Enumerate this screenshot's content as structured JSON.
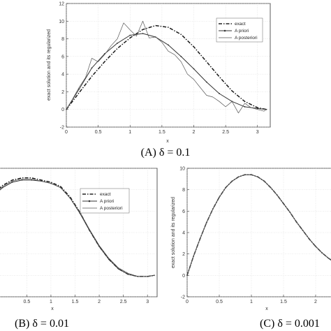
{
  "chart_data": [
    {
      "type": "line",
      "caption": "(A)  δ = 0.1",
      "xlabel": "x",
      "ylabel": "exact solution and its regularized",
      "xlim": [
        0,
        3.2
      ],
      "ylim": [
        -2,
        12
      ],
      "xticks": [
        "0",
        "0.5",
        "1",
        "1.5",
        "2",
        "2.5",
        "3"
      ],
      "yticks": [
        "-2",
        "0",
        "2",
        "4",
        "6",
        "8",
        "10",
        "12"
      ],
      "grid": true,
      "legend": "top-right",
      "series": [
        {
          "name": "exact",
          "style": "dash-dot",
          "x": [
            0,
            0.2,
            0.4,
            0.6,
            0.8,
            1.0,
            1.2,
            1.4,
            1.6,
            1.8,
            2.0,
            2.2,
            2.4,
            2.6,
            2.8,
            3.0,
            3.14
          ],
          "values": [
            0,
            1.9,
            3.75,
            5.4,
            6.9,
            8.1,
            9.05,
            9.5,
            9.3,
            8.5,
            7.1,
            5.4,
            3.7,
            2.1,
            0.9,
            0.2,
            0
          ]
        },
        {
          "name": "A priori",
          "style": "solid-marker",
          "x": [
            0,
            0.2,
            0.4,
            0.6,
            0.8,
            1.0,
            1.2,
            1.4,
            1.6,
            1.8,
            2.0,
            2.2,
            2.4,
            2.6,
            2.8,
            3.0,
            3.14
          ],
          "values": [
            0,
            2.3,
            4.7,
            6.3,
            7.5,
            8.4,
            8.6,
            8.2,
            7.3,
            6.0,
            4.6,
            3.1,
            1.8,
            0.9,
            0.3,
            0.1,
            0
          ]
        },
        {
          "name": "A posteriori",
          "style": "solid-thin",
          "x": [
            0,
            0.1,
            0.2,
            0.3,
            0.4,
            0.5,
            0.6,
            0.7,
            0.8,
            0.9,
            1.0,
            1.1,
            1.2,
            1.3,
            1.4,
            1.5,
            1.6,
            1.7,
            1.8,
            1.9,
            2.0,
            2.1,
            2.2,
            2.3,
            2.4,
            2.5,
            2.6,
            2.7,
            2.8,
            2.9,
            3.0,
            3.1,
            3.14
          ],
          "values": [
            0,
            1.2,
            2.5,
            3.6,
            5.8,
            5.4,
            6.2,
            7.2,
            8.0,
            9.8,
            9.0,
            8.3,
            10.0,
            8.1,
            8.2,
            7.6,
            6.6,
            6.2,
            5.4,
            4.0,
            3.4,
            2.5,
            1.6,
            1.4,
            0.9,
            0.3,
            0.9,
            -0.4,
            0.7,
            0.2,
            0.0,
            -0.2,
            0
          ]
        }
      ]
    },
    {
      "type": "line",
      "caption": "(B)  δ = 0.01",
      "xlabel": "x",
      "xlim": [
        -0.2,
        3.2
      ],
      "ylim": [
        -2,
        10
      ],
      "xticks": [
        "0.5",
        "1",
        "1.5",
        "2",
        "2.5",
        "3"
      ],
      "grid": true,
      "legend": "top-right",
      "series": [
        {
          "name": "exact",
          "style": "dash-dot",
          "x": [
            -0.2,
            0,
            0.2,
            0.4,
            0.6,
            0.8,
            1.0,
            1.2,
            1.4,
            1.6,
            1.8,
            2.0,
            2.2,
            2.4,
            2.6,
            2.8,
            3.0,
            3.14
          ],
          "values": [
            7.6,
            8.4,
            8.9,
            9.1,
            9.1,
            8.9,
            8.7,
            8.3,
            7.3,
            5.9,
            4.2,
            2.7,
            1.5,
            0.6,
            0.1,
            -0.1,
            -0.1,
            0
          ]
        },
        {
          "name": "A priori",
          "style": "solid-marker",
          "x": [
            -0.2,
            0,
            0.2,
            0.4,
            0.6,
            0.8,
            1.0,
            1.2,
            1.4,
            1.6,
            1.8,
            2.0,
            2.2,
            2.4,
            2.6,
            2.8,
            3.0,
            3.14
          ],
          "values": [
            7.4,
            8.2,
            8.7,
            8.9,
            8.9,
            8.8,
            8.6,
            8.2,
            7.2,
            5.8,
            4.2,
            2.7,
            1.5,
            0.6,
            0.1,
            -0.1,
            -0.1,
            0
          ]
        },
        {
          "name": "A posteriori",
          "style": "solid-thin",
          "x": [
            -0.2,
            0,
            0.2,
            0.4,
            0.6,
            0.8,
            1.0,
            1.2,
            1.4,
            1.6,
            1.8,
            2.0,
            2.2,
            2.4,
            2.6,
            2.8,
            3.0,
            3.14
          ],
          "values": [
            7.5,
            8.3,
            8.8,
            9.0,
            9.0,
            8.8,
            8.6,
            8.2,
            7.2,
            5.9,
            4.3,
            2.8,
            1.6,
            0.7,
            0.2,
            -0.1,
            -0.1,
            0
          ]
        }
      ]
    },
    {
      "type": "line",
      "caption": "(C)  δ = 0.001",
      "xlabel": "x",
      "ylabel": "exact solution and its regularized",
      "xlim": [
        0,
        2.5
      ],
      "ylim": [
        -2,
        10
      ],
      "xticks": [
        "0",
        "0.5",
        "1",
        "1.5",
        "2"
      ],
      "yticks": [
        "-2",
        "0",
        "2",
        "4",
        "6",
        "8",
        "10"
      ],
      "grid": true,
      "series": [
        {
          "name": "exact",
          "style": "dash-dot",
          "x": [
            0,
            0.1,
            0.2,
            0.3,
            0.4,
            0.5,
            0.6,
            0.7,
            0.8,
            0.9,
            1.0,
            1.1,
            1.2,
            1.3,
            1.4,
            1.5,
            1.6,
            1.7,
            1.8,
            1.9,
            2.0,
            2.1,
            2.2,
            2.3,
            2.4,
            2.5
          ],
          "values": [
            0,
            1.8,
            3.4,
            4.9,
            6.2,
            7.3,
            8.2,
            8.8,
            9.2,
            9.4,
            9.4,
            9.2,
            8.8,
            8.2,
            7.5,
            6.7,
            5.9,
            5.0,
            4.2,
            3.4,
            2.7,
            2.1,
            1.6,
            1.2,
            0.9,
            0.7
          ]
        },
        {
          "name": "A priori",
          "style": "solid-marker",
          "x": [
            0,
            0.1,
            0.2,
            0.3,
            0.4,
            0.5,
            0.6,
            0.7,
            0.8,
            0.9,
            1.0,
            1.1,
            1.2,
            1.3,
            1.4,
            1.5,
            1.6,
            1.7,
            1.8,
            1.9,
            2.0,
            2.1,
            2.2,
            2.3,
            2.4,
            2.5
          ],
          "values": [
            0,
            1.8,
            3.4,
            4.9,
            6.2,
            7.3,
            8.2,
            8.8,
            9.2,
            9.4,
            9.4,
            9.2,
            8.8,
            8.2,
            7.5,
            6.7,
            5.9,
            5.0,
            4.2,
            3.4,
            2.7,
            2.1,
            1.6,
            1.2,
            0.9,
            0.7
          ]
        },
        {
          "name": "A posteriori",
          "style": "solid-thin",
          "x": [
            0,
            0.1,
            0.2,
            0.3,
            0.4,
            0.5,
            0.6,
            0.7,
            0.8,
            0.9,
            1.0,
            1.1,
            1.2,
            1.3,
            1.4,
            1.5,
            1.6,
            1.7,
            1.8,
            1.9,
            2.0,
            2.1,
            2.2,
            2.3,
            2.4,
            2.5
          ],
          "values": [
            0,
            1.8,
            3.4,
            4.9,
            6.2,
            7.3,
            8.2,
            8.8,
            9.2,
            9.4,
            9.4,
            9.2,
            8.8,
            8.2,
            7.5,
            6.7,
            5.9,
            5.0,
            4.2,
            3.4,
            2.7,
            2.1,
            1.6,
            1.2,
            0.9,
            0.7
          ]
        }
      ]
    }
  ]
}
